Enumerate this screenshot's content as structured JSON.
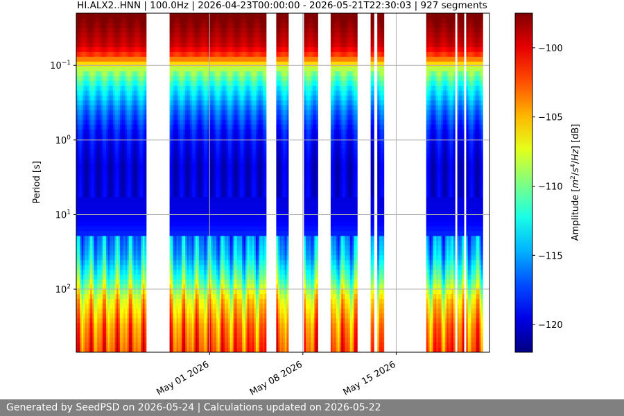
{
  "footer": {
    "text": "Generated by SeedPSD on 2026-05-24 | Calculations updated on 2026-05-22"
  },
  "chart_data": {
    "type": "heatmap",
    "title": "HI.ALX2..HNN | 100.0Hz | 2026-04-23T00:00:00 - 2026-05-21T22:30:03 | 927 segments",
    "xlabel": "",
    "ylabel": "Period [s]",
    "y_scale": "log",
    "y_axis_inverted": true,
    "ylim": [
      0.02,
      700
    ],
    "y_ticks": [
      {
        "value": 0.1,
        "base": "10",
        "exp": "−1"
      },
      {
        "value": 1,
        "base": "10",
        "exp": "0"
      },
      {
        "value": 10,
        "base": "10",
        "exp": "1"
      },
      {
        "value": 100,
        "base": "10",
        "exp": "2"
      }
    ],
    "xlim": [
      "2026-04-21",
      "2026-05-22"
    ],
    "x_ticks": [
      {
        "date": "2026-05-01",
        "label": "May 01 2026"
      },
      {
        "date": "2026-05-08",
        "label": "May 08 2026"
      },
      {
        "date": "2026-05-15",
        "label": "May 15 2026"
      }
    ],
    "grid": true,
    "colormap": "jet",
    "colorbar": {
      "label_parts": [
        "Amplitude [",
        "m",
        "2",
        "/",
        "s",
        "4",
        "/",
        "Hz",
        "] [dB]"
      ],
      "range": [
        -122,
        -97.5
      ],
      "ticks": [
        -100,
        -105,
        -110,
        -115,
        -120
      ]
    },
    "data_segments": [
      {
        "start": "2026-04-21T00:00",
        "end": "2026-04-26T06:00"
      },
      {
        "start": "2026-04-28T00:00",
        "end": "2026-05-05T06:00"
      },
      {
        "start": "2026-05-06T00:00",
        "end": "2026-05-06T22:00"
      },
      {
        "start": "2026-05-08T02:00",
        "end": "2026-05-09T03:00"
      },
      {
        "start": "2026-05-10T02:00",
        "end": "2026-05-12T02:00"
      },
      {
        "start": "2026-05-13T02:00",
        "end": "2026-05-13T08:00"
      },
      {
        "start": "2026-05-13T14:00",
        "end": "2026-05-14T02:00"
      },
      {
        "start": "2026-05-17T06:00",
        "end": "2026-05-19T10:00"
      },
      {
        "start": "2026-05-19T14:00",
        "end": "2026-05-20T02:00"
      },
      {
        "start": "2026-05-20T06:00",
        "end": "2026-05-21T12:00"
      }
    ]
  }
}
